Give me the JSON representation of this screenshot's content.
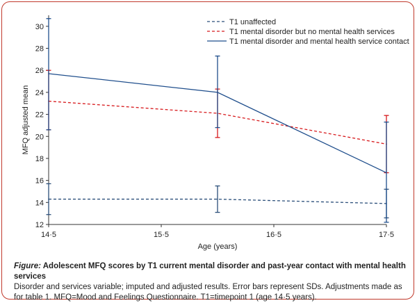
{
  "chart_data": {
    "type": "line",
    "xlabel": "Age (years)",
    "ylabel": "MFQ adjusted mean",
    "xlim": [
      14.5,
      17.5
    ],
    "ylim": [
      12,
      31
    ],
    "x_ticks": [
      {
        "value": 14.5,
        "label": "14·5"
      },
      {
        "value": 15.5,
        "label": "15·5"
      },
      {
        "value": 16.5,
        "label": "16·5"
      },
      {
        "value": 17.5,
        "label": "17·5"
      }
    ],
    "y_ticks": [
      {
        "value": 12,
        "label": "12"
      },
      {
        "value": 14,
        "label": "14"
      },
      {
        "value": 16,
        "label": "16"
      },
      {
        "value": 18,
        "label": "18"
      },
      {
        "value": 20,
        "label": "20"
      },
      {
        "value": 22,
        "label": "22"
      },
      {
        "value": 24,
        "label": "24"
      },
      {
        "value": 26,
        "label": "26"
      },
      {
        "value": 28,
        "label": "28"
      },
      {
        "value": 30,
        "label": "30"
      }
    ],
    "series": [
      {
        "name": "T1 unaffected",
        "color": "#2b4f7a",
        "dash": true,
        "x": [
          14.5,
          16.0,
          17.5
        ],
        "values": [
          14.3,
          14.3,
          13.9
        ],
        "err_low": [
          12.9,
          13.1,
          12.6
        ],
        "err_high": [
          15.7,
          15.5,
          15.2
        ]
      },
      {
        "name": "T1 mental disorder but no mental health services",
        "color": "#d7191c",
        "dash": true,
        "x": [
          14.5,
          16.0,
          17.5
        ],
        "values": [
          23.2,
          22.1,
          19.3
        ],
        "err_low": [
          20.6,
          19.9,
          16.7
        ],
        "err_high": [
          26.0,
          24.3,
          21.9
        ]
      },
      {
        "name": "T1 mental disorder and mental health service contact",
        "color": "#1f4e8c",
        "dash": false,
        "x": [
          14.5,
          16.0,
          17.5
        ],
        "values": [
          25.7,
          24.0,
          16.7
        ],
        "err_low": [
          20.6,
          20.8,
          12.2
        ],
        "err_high": [
          30.7,
          27.3,
          21.3
        ]
      }
    ]
  },
  "caption": {
    "figure_label": "Figure:",
    "title": " Adolescent MFQ scores by T1 current mental disorder and past-year contact with mental health services",
    "body": "Disorder and services variable; imputed and adjusted results. Error bars represent SDs. Adjustments made as for table 1. MFQ=Mood and Feelings Questionnaire. T1=timepoint 1 (age 14·5 years)."
  }
}
